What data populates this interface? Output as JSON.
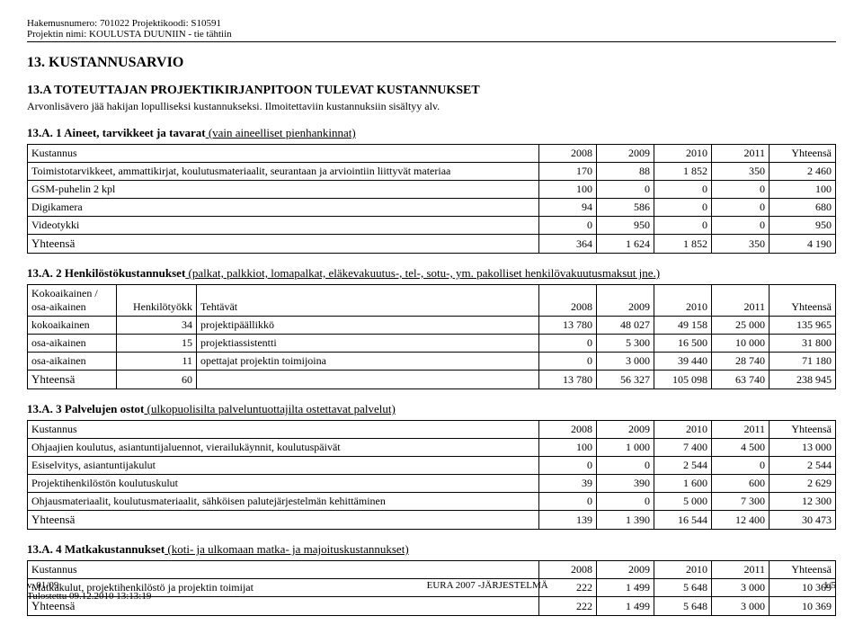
{
  "meta": {
    "line1": "Hakemusnumero: 701022  Projektikoodi: S10591",
    "line2": "Projektin nimi: KOULUSTA DUUNIIN - tie tähtiin"
  },
  "main_title": "13. KUSTANNUSARVIO",
  "section_a": {
    "title": "13.A TOTEUTTAJAN PROJEKTIKIRJANPITOON TULEVAT KUSTANNUKSET",
    "note": "Arvonlisävero jää hakijan lopulliseksi kustannukseksi. Ilmoitettaviin kustannuksiin sisältyy alv."
  },
  "years": [
    "2008",
    "2009",
    "2010",
    "2011"
  ],
  "labels": {
    "kustannus": "Kustannus",
    "yhteensa": "Yhteensä",
    "kokoaikainen": "Kokoaikainen / osa-aikainen",
    "henkilotyokk": "Henkilötyökk",
    "tehtavat": "Tehtävät"
  },
  "a1": {
    "head_bold": "13.A. 1 Aineet, tarvikkeet ja tavarat",
    "head_rest": "  (vain aineelliset pienhankinnat)",
    "rows": [
      {
        "label": "Toimistotarvikkeet, ammattikirjat, koulutusmateriaalit, seurantaan ja arviointiin liittyvät materiaa",
        "v": [
          "170",
          "88",
          "1 852",
          "350",
          "2 460"
        ]
      },
      {
        "label": "GSM-puhelin 2 kpl",
        "v": [
          "100",
          "0",
          "0",
          "0",
          "100"
        ]
      },
      {
        "label": "Digikamera",
        "v": [
          "94",
          "586",
          "0",
          "0",
          "680"
        ]
      },
      {
        "label": "Videotykki",
        "v": [
          "0",
          "950",
          "0",
          "0",
          "950"
        ]
      }
    ],
    "total": [
      "364",
      "1 624",
      "1 852",
      "350",
      "4 190"
    ]
  },
  "a2": {
    "head_bold": "13.A. 2 Henkilöstökustannukset",
    "head_rest": " (palkat, palkkiot, lomapalkat, eläkevakuutus-, tel-, sotu-, ym. pakolliset henkilövakuutusmaksut jne.)",
    "rows": [
      {
        "c1": "kokoaikainen",
        "c2": "34",
        "c3": "projektipäällikkö",
        "v": [
          "13 780",
          "48 027",
          "49 158",
          "25 000",
          "135 965"
        ]
      },
      {
        "c1": "osa-aikainen",
        "c2": "15",
        "c3": "projektiassistentti",
        "v": [
          "0",
          "5 300",
          "16 500",
          "10 000",
          "31 800"
        ]
      },
      {
        "c1": "osa-aikainen",
        "c2": "11",
        "c3": "opettajat projektin toimijoina",
        "v": [
          "0",
          "3 000",
          "39 440",
          "28 740",
          "71 180"
        ]
      }
    ],
    "total_c2": "60",
    "total": [
      "13 780",
      "56 327",
      "105 098",
      "63 740",
      "238 945"
    ]
  },
  "a3": {
    "head_bold": "13.A. 3 Palvelujen ostot",
    "head_rest": " (ulkopuolisilta palveluntuottajilta ostettavat palvelut)",
    "rows": [
      {
        "label": "Ohjaajien koulutus, asiantuntijaluennot, vierailukäynnit, koulutuspäivät",
        "v": [
          "100",
          "1 000",
          "7 400",
          "4 500",
          "13 000"
        ]
      },
      {
        "label": "Esiselvitys, asiantuntijakulut",
        "v": [
          "0",
          "0",
          "2 544",
          "0",
          "2 544"
        ]
      },
      {
        "label": "Projektihenkilöstön koulutuskulut",
        "v": [
          "39",
          "390",
          "1 600",
          "600",
          "2 629"
        ]
      },
      {
        "label": "Ohjausmateriaalit, koulutusmateriaalit, sähköisen palutejärjestelmän kehittäminen",
        "v": [
          "0",
          "0",
          "5 000",
          "7 300",
          "12 300"
        ]
      }
    ],
    "total": [
      "139",
      "1 390",
      "16 544",
      "12 400",
      "30 473"
    ]
  },
  "a4": {
    "head_bold": "13.A. 4 Matkakustannukset",
    "head_rest": " (koti- ja ulkomaan matka- ja majoituskustannukset)",
    "rows": [
      {
        "label": "Matkakulut, projektihenkilöstö ja projektin toimijat",
        "v": [
          "222",
          "1 499",
          "5 648",
          "3 000",
          "10 369"
        ]
      }
    ],
    "total": [
      "222",
      "1 499",
      "5 648",
      "3 000",
      "10 369"
    ]
  },
  "footer": {
    "left1": "v. 01/09",
    "left2": "Tulostettu 09.12.2010 13:13:19",
    "center": "EURA 2007 -JÄRJESTELMÄ",
    "right": "1/5"
  }
}
